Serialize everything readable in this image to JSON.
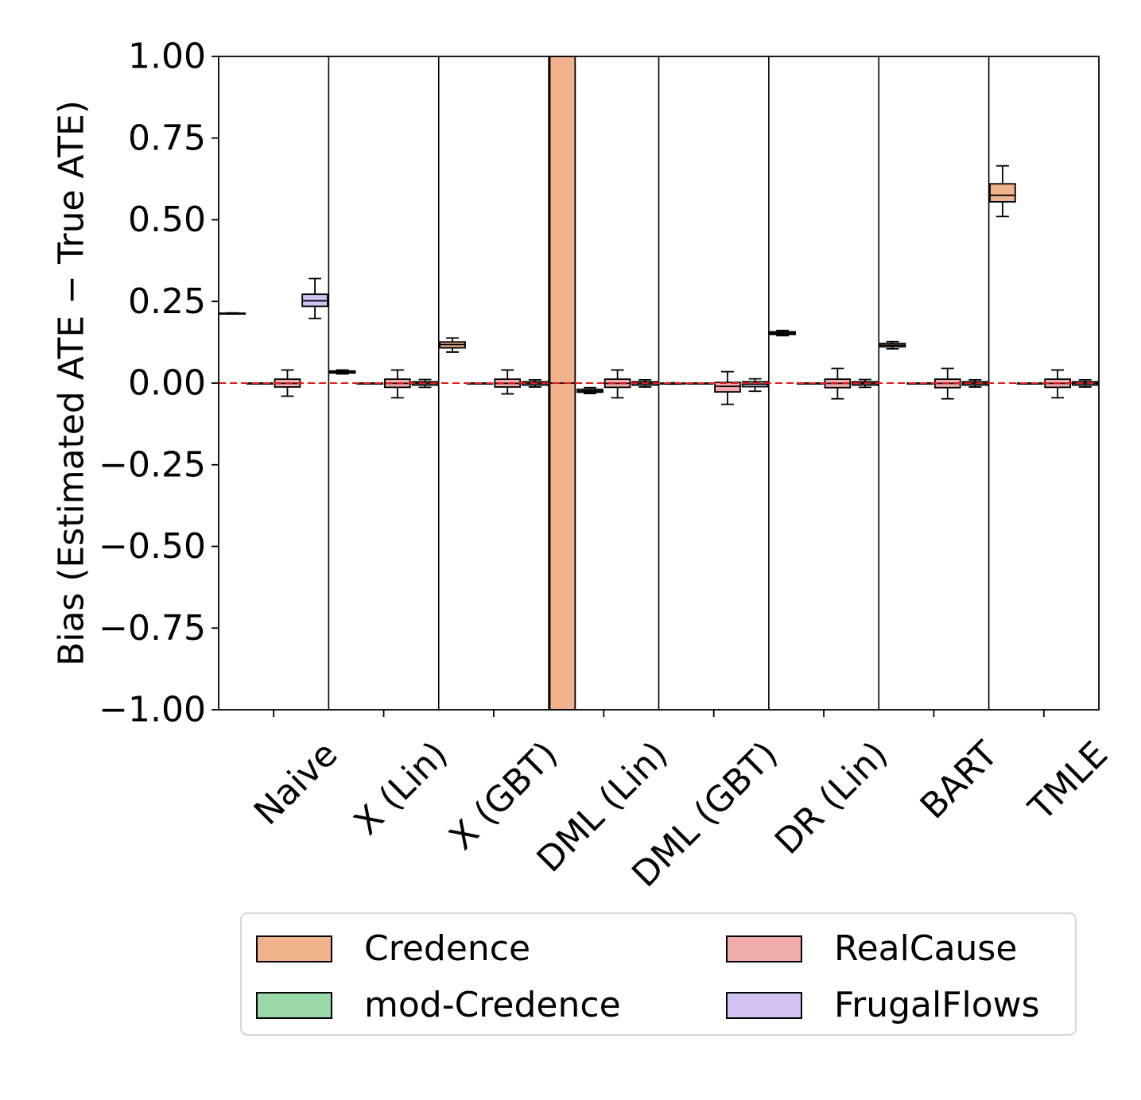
{
  "chart_data": {
    "type": "boxplot",
    "title": "",
    "xlabel": "",
    "ylabel": "Bias (Estimated ATE − True ATE)",
    "ylim": [
      -1.0,
      1.0
    ],
    "yticks": [
      "1.00",
      "0.75",
      "0.50",
      "0.25",
      "0.00",
      "−0.25",
      "−0.50",
      "−0.75",
      "−1.00"
    ],
    "ytick_values": [
      1.0,
      0.75,
      0.5,
      0.25,
      0.0,
      -0.25,
      -0.5,
      -0.75,
      -1.0
    ],
    "categories": [
      "Naive",
      "X (Lin)",
      "X (GBT)",
      "DML (Lin)",
      "DML (GBT)",
      "DR (Lin)",
      "BART",
      "TMLE"
    ],
    "reference_line": {
      "y": 0.0,
      "color": "#e41a1c",
      "style": "dashed"
    },
    "series": [
      {
        "name": "Credence",
        "color": "#f0b38b",
        "boxes": [
          {
            "category": "Naive",
            "whislo": 0.212,
            "q1": 0.212,
            "med": 0.213,
            "q3": 0.214,
            "whishi": 0.215
          },
          {
            "category": "X (Lin)",
            "whislo": 0.028,
            "q1": 0.031,
            "med": 0.034,
            "q3": 0.037,
            "whishi": 0.04
          },
          {
            "category": "X (GBT)",
            "whislo": 0.095,
            "q1": 0.108,
            "med": 0.118,
            "q3": 0.126,
            "whishi": 0.138
          },
          {
            "category": "DML (Lin)",
            "whislo": -1.0,
            "q1": -1.0,
            "med": 0.0,
            "q3": 1.0,
            "whishi": 1.0
          },
          {
            "category": "DML (GBT)",
            "whislo": -0.003,
            "q1": -0.002,
            "med": -0.001,
            "q3": 0.0,
            "whishi": 0.001
          },
          {
            "category": "DR (Lin)",
            "whislo": 0.145,
            "q1": 0.149,
            "med": 0.153,
            "q3": 0.157,
            "whishi": 0.161
          },
          {
            "category": "BART",
            "whislo": 0.105,
            "q1": 0.111,
            "med": 0.116,
            "q3": 0.121,
            "whishi": 0.127
          },
          {
            "category": "TMLE",
            "whislo": 0.51,
            "q1": 0.555,
            "med": 0.575,
            "q3": 0.61,
            "whishi": 0.665
          }
        ]
      },
      {
        "name": "mod-Credence",
        "color": "#98d9a7",
        "boxes": [
          {
            "category": "Naive",
            "whislo": 0.0,
            "q1": 0.0,
            "med": 0.0,
            "q3": 0.0,
            "whishi": 0.0
          },
          {
            "category": "X (Lin)",
            "whislo": 0.0,
            "q1": 0.0,
            "med": 0.0,
            "q3": 0.0,
            "whishi": 0.0
          },
          {
            "category": "X (GBT)",
            "whislo": 0.0,
            "q1": 0.0,
            "med": 0.0,
            "q3": 0.0,
            "whishi": 0.0
          },
          {
            "category": "DML (Lin)",
            "whislo": -0.032,
            "q1": -0.028,
            "med": -0.024,
            "q3": -0.019,
            "whishi": -0.014
          },
          {
            "category": "DML (GBT)",
            "whislo": 0.0,
            "q1": 0.0,
            "med": 0.0,
            "q3": 0.0,
            "whishi": 0.0
          },
          {
            "category": "DR (Lin)",
            "whislo": 0.0,
            "q1": 0.0,
            "med": 0.0,
            "q3": 0.0,
            "whishi": 0.0
          },
          {
            "category": "BART",
            "whislo": 0.0,
            "q1": 0.0,
            "med": 0.0,
            "q3": 0.0,
            "whishi": 0.0
          },
          {
            "category": "TMLE",
            "whislo": -0.002,
            "q1": -0.002,
            "med": -0.001,
            "q3": 0.0,
            "whishi": 0.0
          }
        ]
      },
      {
        "name": "RealCause",
        "color": "#f1abab",
        "boxes": [
          {
            "category": "Naive",
            "whislo": -0.04,
            "q1": -0.012,
            "med": -0.001,
            "q3": 0.012,
            "whishi": 0.04
          },
          {
            "category": "X (Lin)",
            "whislo": -0.045,
            "q1": -0.013,
            "med": -0.001,
            "q3": 0.012,
            "whishi": 0.04
          },
          {
            "category": "X (GBT)",
            "whislo": -0.033,
            "q1": -0.012,
            "med": -0.001,
            "q3": 0.012,
            "whishi": 0.04
          },
          {
            "category": "DML (Lin)",
            "whislo": -0.045,
            "q1": -0.013,
            "med": -0.001,
            "q3": 0.012,
            "whishi": 0.04
          },
          {
            "category": "DML (GBT)",
            "whislo": -0.065,
            "q1": -0.027,
            "med": -0.01,
            "q3": 0.002,
            "whishi": 0.035
          },
          {
            "category": "DR (Lin)",
            "whislo": -0.048,
            "q1": -0.014,
            "med": -0.001,
            "q3": 0.012,
            "whishi": 0.045
          },
          {
            "category": "BART",
            "whislo": -0.048,
            "q1": -0.014,
            "med": -0.001,
            "q3": 0.012,
            "whishi": 0.045
          },
          {
            "category": "TMLE",
            "whislo": -0.045,
            "q1": -0.013,
            "med": -0.001,
            "q3": 0.012,
            "whishi": 0.04
          }
        ]
      },
      {
        "name": "FrugalFlows",
        "color": "#d2c2f2",
        "boxes": [
          {
            "category": "Naive",
            "whislo": 0.198,
            "q1": 0.235,
            "med": 0.252,
            "q3": 0.272,
            "whishi": 0.32
          },
          {
            "category": "X (Lin)",
            "whislo": -0.013,
            "q1": -0.006,
            "med": -0.001,
            "q3": 0.004,
            "whishi": 0.011
          },
          {
            "category": "X (GBT)",
            "whislo": -0.012,
            "q1": -0.006,
            "med": -0.001,
            "q3": 0.004,
            "whishi": 0.01
          },
          {
            "category": "DML (Lin)",
            "whislo": -0.012,
            "q1": -0.006,
            "med": -0.001,
            "q3": 0.004,
            "whishi": 0.01
          },
          {
            "category": "DML (GBT)",
            "whislo": -0.025,
            "q1": -0.011,
            "med": -0.003,
            "q3": 0.004,
            "whishi": 0.013
          },
          {
            "category": "DR (Lin)",
            "whislo": -0.013,
            "q1": -0.006,
            "med": -0.001,
            "q3": 0.004,
            "whishi": 0.011
          },
          {
            "category": "BART",
            "whislo": -0.012,
            "q1": -0.006,
            "med": -0.001,
            "q3": 0.004,
            "whishi": 0.01
          },
          {
            "category": "TMLE",
            "whislo": -0.012,
            "q1": -0.006,
            "med": -0.001,
            "q3": 0.004,
            "whishi": 0.01
          }
        ]
      }
    ],
    "legend": {
      "position": "bottom",
      "columns": 2,
      "entries": [
        "Credence",
        "RealCause",
        "mod-Credence",
        "FrugalFlows"
      ]
    }
  }
}
